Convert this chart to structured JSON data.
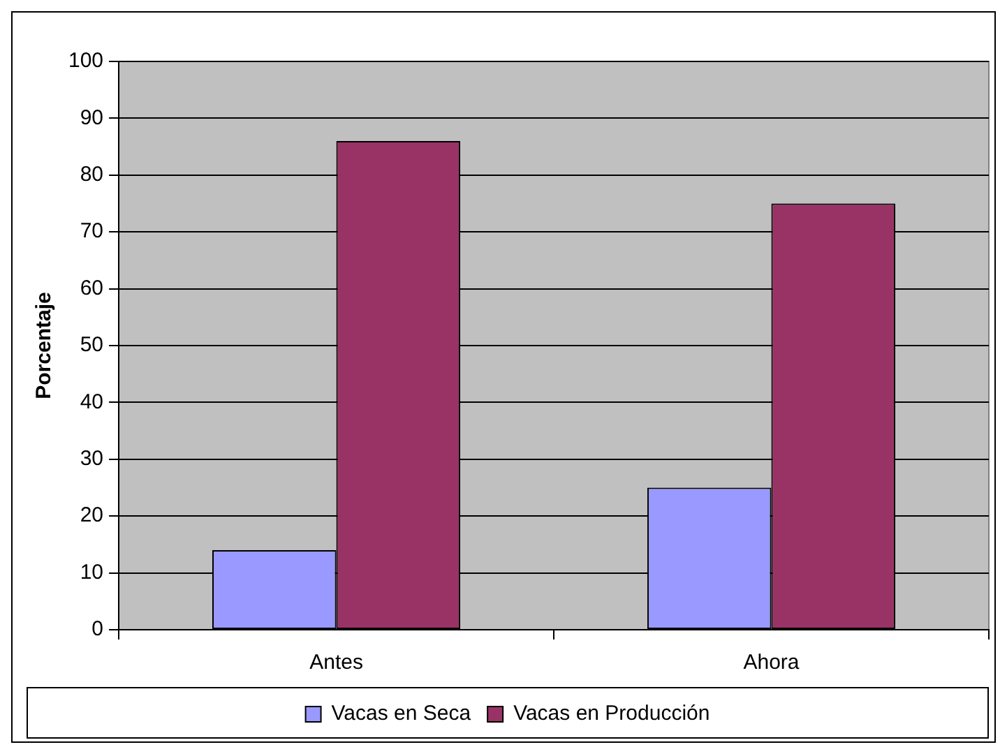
{
  "chart_data": {
    "type": "bar",
    "ylabel": "Porcentaje",
    "categories": [
      "Antes",
      "Ahora"
    ],
    "series": [
      {
        "name": "Vacas en Seca",
        "color": "#9999ff",
        "values": [
          14,
          25
        ]
      },
      {
        "name": "Vacas en Producción",
        "color": "#993366",
        "values": [
          86,
          75
        ]
      }
    ],
    "ylim": [
      0,
      100
    ],
    "yticks": [
      0,
      10,
      20,
      30,
      40,
      50,
      60,
      70,
      80,
      90,
      100
    ],
    "grid": "y",
    "legend": "bottom"
  }
}
